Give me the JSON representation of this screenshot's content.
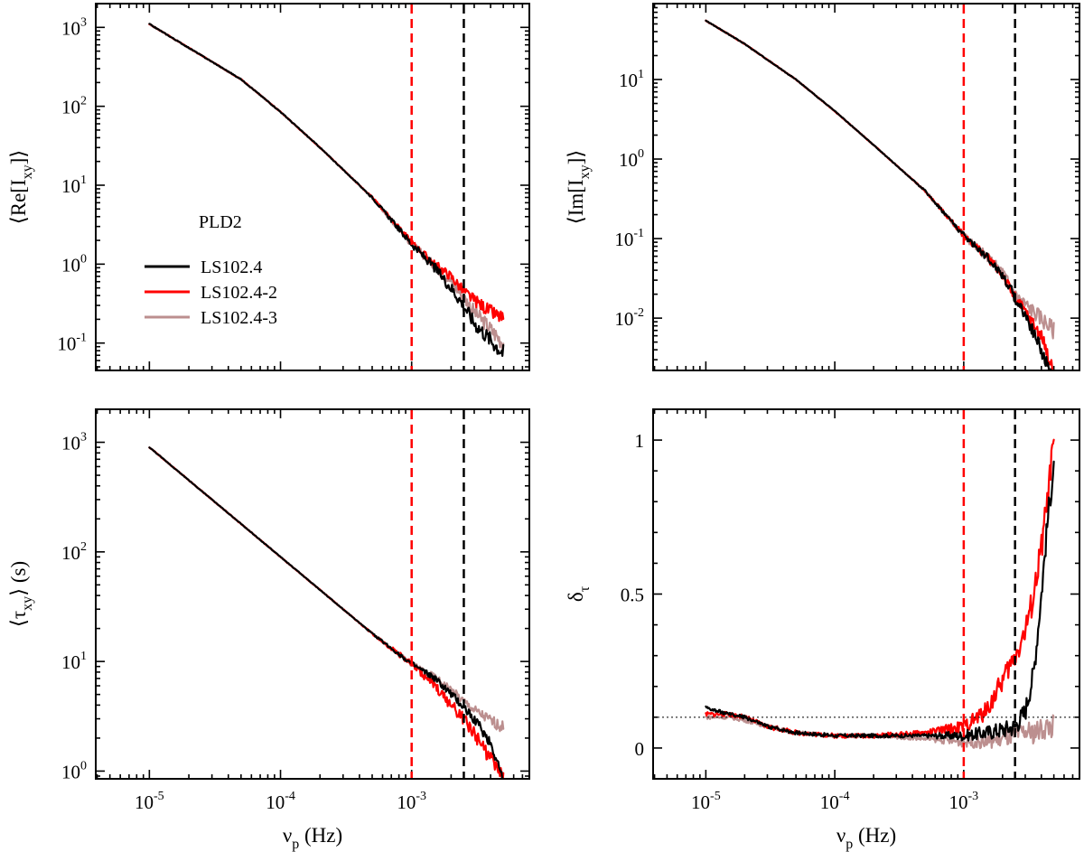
{
  "figure_label": "PLD2",
  "colors": {
    "LS102.4": "#000000",
    "LS102.4-2": "#ff0000",
    "LS102.4-3": "#bc8f8f"
  },
  "chart_data": [
    {
      "id": "re",
      "type": "line",
      "ylabel": {
        "base": "⟨Re[I",
        "sub": "xy",
        "tail": "]⟩"
      },
      "xlabel": null,
      "xscale": "log",
      "yscale": "log",
      "xlim": [
        3.9e-06,
        0.0079
      ],
      "ylim": [
        0.045,
        2000
      ],
      "yticks": [
        {
          "b": "10",
          "e": "-1",
          "v": 0.1
        },
        {
          "b": "10",
          "e": "0",
          "v": 1
        },
        {
          "b": "10",
          "e": "1",
          "v": 10
        },
        {
          "b": "10",
          "e": "2",
          "v": 100
        },
        {
          "b": "10",
          "e": "3",
          "v": 1000
        }
      ],
      "xticks": [],
      "vlines": [
        {
          "x": 0.001,
          "color": "#ff0000"
        },
        {
          "x": 0.0025,
          "color": "#000000"
        }
      ],
      "legend": {
        "title": "PLD2",
        "entries": [
          "LS102.4",
          "LS102.4-2",
          "LS102.4-3"
        ]
      },
      "series": [
        {
          "name": "LS102.4",
          "color": "#000000",
          "x": [
            1e-05,
            2e-05,
            5e-05,
            0.0001,
            0.0002,
            0.0005,
            0.001,
            0.0015,
            0.002,
            0.0025,
            0.003,
            0.004,
            0.005
          ],
          "y": [
            1100,
            550,
            220,
            85,
            30,
            7,
            1.8,
            0.9,
            0.5,
            0.3,
            0.18,
            0.11,
            0.075
          ],
          "noise": 0.12
        },
        {
          "name": "LS102.4-2",
          "color": "#ff0000",
          "x": [
            1e-05,
            2e-05,
            5e-05,
            0.0001,
            0.0002,
            0.0005,
            0.001,
            0.0015,
            0.002,
            0.0025,
            0.003,
            0.004,
            0.005
          ],
          "y": [
            1100,
            550,
            220,
            85,
            30,
            7,
            1.9,
            1.0,
            0.7,
            0.45,
            0.35,
            0.25,
            0.2
          ],
          "noise": 0.1
        },
        {
          "name": "LS102.4-3",
          "color": "#bc8f8f",
          "x": [
            1e-05,
            2e-05,
            5e-05,
            0.0001,
            0.0002,
            0.0005,
            0.001,
            0.0015,
            0.002,
            0.0025,
            0.003,
            0.004,
            0.005
          ],
          "y": [
            1100,
            550,
            220,
            85,
            30,
            7,
            1.8,
            0.95,
            0.6,
            0.38,
            0.25,
            0.15,
            0.1
          ],
          "noise": 0.12
        }
      ]
    },
    {
      "id": "im",
      "type": "line",
      "ylabel": {
        "base": "⟨Im[I",
        "sub": "xy",
        "tail": "]⟩"
      },
      "xlabel": null,
      "xscale": "log",
      "yscale": "log",
      "xlim": [
        3.9e-06,
        0.0079
      ],
      "ylim": [
        0.0022,
        90
      ],
      "yticks": [
        {
          "b": "10",
          "e": "-2",
          "v": 0.01
        },
        {
          "b": "10",
          "e": "-1",
          "v": 0.1
        },
        {
          "b": "10",
          "e": "0",
          "v": 1
        },
        {
          "b": "10",
          "e": "1",
          "v": 10
        }
      ],
      "xticks": [],
      "vlines": [
        {
          "x": 0.001,
          "color": "#ff0000"
        },
        {
          "x": 0.0025,
          "color": "#000000"
        }
      ],
      "series": [
        {
          "name": "LS102.4",
          "color": "#000000",
          "x": [
            1e-05,
            2e-05,
            5e-05,
            0.0001,
            0.0002,
            0.0005,
            0.001,
            0.0015,
            0.002,
            0.0025,
            0.003,
            0.004,
            0.005
          ],
          "y": [
            55,
            28,
            10,
            4,
            1.5,
            0.4,
            0.11,
            0.06,
            0.035,
            0.018,
            0.011,
            0.004,
            0.0015
          ],
          "noise": 0.1
        },
        {
          "name": "LS102.4-2",
          "color": "#ff0000",
          "x": [
            1e-05,
            2e-05,
            5e-05,
            0.0001,
            0.0002,
            0.0005,
            0.001,
            0.0015,
            0.002,
            0.0025,
            0.003,
            0.004,
            0.005
          ],
          "y": [
            55,
            28,
            10,
            4,
            1.5,
            0.4,
            0.11,
            0.06,
            0.035,
            0.018,
            0.012,
            0.006,
            0.002
          ],
          "noise": 0.1
        },
        {
          "name": "LS102.4-3",
          "color": "#bc8f8f",
          "x": [
            1e-05,
            2e-05,
            5e-05,
            0.0001,
            0.0002,
            0.0005,
            0.001,
            0.0015,
            0.002,
            0.0025,
            0.003,
            0.004,
            0.005
          ],
          "y": [
            55,
            28,
            10,
            4,
            1.5,
            0.4,
            0.11,
            0.06,
            0.038,
            0.02,
            0.015,
            0.01,
            0.007
          ],
          "noise": 0.12
        }
      ]
    },
    {
      "id": "tau",
      "type": "line",
      "ylabel": {
        "base": "⟨τ",
        "sub": "xy",
        "tail": "⟩ (s)"
      },
      "xlabel": {
        "base": "ν",
        "sub": "p",
        "tail": " (Hz)"
      },
      "xscale": "log",
      "yscale": "log",
      "xlim": [
        3.9e-06,
        0.0079
      ],
      "ylim": [
        0.85,
        2000
      ],
      "yticks": [
        {
          "b": "10",
          "e": "0",
          "v": 1
        },
        {
          "b": "10",
          "e": "1",
          "v": 10
        },
        {
          "b": "10",
          "e": "2",
          "v": 100
        },
        {
          "b": "10",
          "e": "3",
          "v": 1000
        }
      ],
      "xticks": [
        {
          "b": "10",
          "e": "-5",
          "v": 1e-05
        },
        {
          "b": "10",
          "e": "-4",
          "v": 0.0001
        },
        {
          "b": "10",
          "e": "-3",
          "v": 0.001
        }
      ],
      "vlines": [
        {
          "x": 0.001,
          "color": "#ff0000"
        },
        {
          "x": 0.0025,
          "color": "#000000"
        }
      ],
      "series": [
        {
          "name": "LS102.4",
          "color": "#000000",
          "x": [
            1e-05,
            2e-05,
            5e-05,
            0.0001,
            0.0002,
            0.0005,
            0.001,
            0.0015,
            0.002,
            0.0025,
            0.003,
            0.004,
            0.005
          ],
          "y": [
            900,
            450,
            180,
            90,
            45,
            18,
            9.5,
            7,
            5,
            3.8,
            3,
            1.8,
            0.85
          ],
          "noise": 0.06
        },
        {
          "name": "LS102.4-2",
          "color": "#ff0000",
          "x": [
            1e-05,
            2e-05,
            5e-05,
            0.0001,
            0.0002,
            0.0005,
            0.001,
            0.0015,
            0.002,
            0.0025,
            0.003,
            0.004,
            0.005
          ],
          "y": [
            900,
            450,
            180,
            90,
            45,
            18,
            9.5,
            6,
            4,
            3,
            2.2,
            1.3,
            0.85
          ],
          "noise": 0.08
        },
        {
          "name": "LS102.4-3",
          "color": "#bc8f8f",
          "x": [
            1e-05,
            2e-05,
            5e-05,
            0.0001,
            0.0002,
            0.0005,
            0.001,
            0.0015,
            0.002,
            0.0025,
            0.003,
            0.004,
            0.005
          ],
          "y": [
            900,
            450,
            180,
            90,
            45,
            18,
            9.5,
            7.2,
            5.5,
            4.3,
            3.6,
            2.9,
            2.5
          ],
          "noise": 0.06
        }
      ]
    },
    {
      "id": "delta",
      "type": "line",
      "ylabel": {
        "base": "δ",
        "sub": "τ",
        "tail": ""
      },
      "xlabel": {
        "base": "ν",
        "sub": "p",
        "tail": " (Hz)"
      },
      "xscale": "log",
      "yscale": "linear",
      "xlim": [
        3.9e-06,
        0.0079
      ],
      "ylim": [
        -0.1,
        1.1
      ],
      "yticks": [
        {
          "b": "0",
          "e": "",
          "v": 0
        },
        {
          "b": "0.5",
          "e": "",
          "v": 0.5
        },
        {
          "b": "1",
          "e": "",
          "v": 1
        }
      ],
      "yminor": 0.1,
      "xticks": [
        {
          "b": "10",
          "e": "-5",
          "v": 1e-05
        },
        {
          "b": "10",
          "e": "-4",
          "v": 0.0001
        },
        {
          "b": "10",
          "e": "-3",
          "v": 0.001
        }
      ],
      "vlines": [
        {
          "x": 0.001,
          "color": "#ff0000"
        },
        {
          "x": 0.0025,
          "color": "#000000"
        }
      ],
      "hline": 0.1,
      "series": [
        {
          "name": "LS102.4",
          "color": "#000000",
          "x": [
            1e-05,
            1.5e-05,
            2e-05,
            3e-05,
            5e-05,
            0.0001,
            0.0002,
            0.0005,
            0.001,
            0.0015,
            0.002,
            0.0025,
            0.003,
            0.0035,
            0.004,
            0.0045,
            0.005
          ],
          "y": [
            0.13,
            0.11,
            0.1,
            0.07,
            0.05,
            0.04,
            0.04,
            0.04,
            0.04,
            0.05,
            0.06,
            0.07,
            0.12,
            0.25,
            0.5,
            0.75,
            0.92
          ],
          "noise": 0.012
        },
        {
          "name": "LS102.4-2",
          "color": "#ff0000",
          "x": [
            1e-05,
            1.5e-05,
            2e-05,
            3e-05,
            5e-05,
            0.0001,
            0.0002,
            0.0005,
            0.001,
            0.0015,
            0.002,
            0.0025,
            0.003,
            0.0035,
            0.004,
            0.0045,
            0.005
          ],
          "y": [
            0.11,
            0.11,
            0.1,
            0.07,
            0.05,
            0.04,
            0.04,
            0.05,
            0.07,
            0.12,
            0.22,
            0.3,
            0.38,
            0.5,
            0.65,
            0.82,
            1.0
          ],
          "noise": 0.015
        },
        {
          "name": "LS102.4-3",
          "color": "#bc8f8f",
          "x": [
            1e-05,
            1.5e-05,
            2e-05,
            3e-05,
            5e-05,
            0.0001,
            0.0002,
            0.0005,
            0.001,
            0.0015,
            0.002,
            0.0025,
            0.003,
            0.0035,
            0.004,
            0.0045,
            0.005
          ],
          "y": [
            0.1,
            0.1,
            0.09,
            0.07,
            0.05,
            0.04,
            0.04,
            0.03,
            0.02,
            0.02,
            0.03,
            0.04,
            0.05,
            0.05,
            0.06,
            0.07,
            0.07
          ],
          "noise": 0.012
        }
      ]
    }
  ]
}
